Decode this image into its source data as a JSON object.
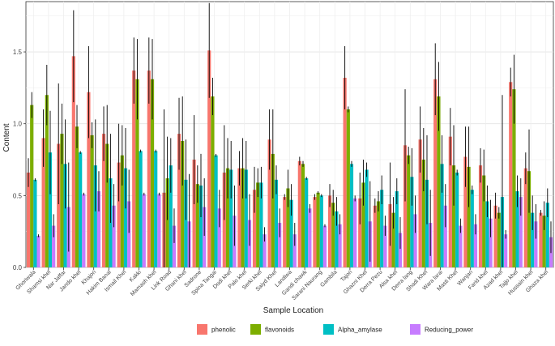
{
  "chart_data": {
    "type": "bar",
    "xlabel": "Sample Location",
    "ylabel": "Content",
    "ylim": [
      0,
      1.85
    ],
    "yticks": [
      "0.0",
      "0.5",
      "1.0",
      "1.5"
    ],
    "ytick_values": [
      0,
      0.5,
      1.0,
      1.5
    ],
    "grid": true,
    "legend_position": "bottom",
    "categories": [
      "Ghoriwala",
      "Shamsi khel",
      "Nar Jaffar",
      "Jando khel",
      "Khajori",
      "Hakim Banal",
      "Ismail Khel",
      "Kakki",
      "Mamash khel",
      "Link Road",
      "Ghani khel",
      "Sadrone",
      "Spina Tangai",
      "Dodi khel",
      "Palo khel",
      "Serki khel",
      "Saiyd Khel",
      "Landiwa",
      "Gandi chawk",
      "Sarani Naurang",
      "Gambila",
      "Tajori",
      "Ghazni Khel",
      "Derra Pezu",
      "Alsa khel",
      "Derra lang",
      "Shadi Khel",
      "Wara larai",
      "Masti Khel",
      "Wanjari",
      "Farid khel",
      "Azad khel",
      "Tajjo khel",
      "Hussain khel",
      "Ghaza khel"
    ],
    "series": [
      {
        "name": "phenolic",
        "color": "#F8766D",
        "values": [
          0.66,
          0.9,
          0.86,
          1.47,
          1.22,
          0.93,
          0.73,
          1.37,
          1.37,
          0.52,
          0.93,
          0.75,
          1.51,
          0.66,
          0.69,
          0.54,
          0.89,
          0.49,
          0.74,
          0.49,
          0.5,
          1.32,
          0.48,
          0.43,
          0.44,
          0.85,
          0.89,
          1.31,
          0.91,
          0.77,
          0.71,
          0.43,
          1.29,
          0.69,
          0.38
        ],
        "errors": [
          0.1,
          0.2,
          0.42,
          0.32,
          0.32,
          0.19,
          0.27,
          0.23,
          0.23,
          0.58,
          0.25,
          0.31,
          0.33,
          0.33,
          0.12,
          0.16,
          0.21,
          0.02,
          0.03,
          0.02,
          0.08,
          0.22,
          0.18,
          0.05,
          0.29,
          0.39,
          0.23,
          0.25,
          0.2,
          0.21,
          0.12,
          0.09,
          0.1,
          0.11,
          0.02
        ]
      },
      {
        "name": "flavonoids",
        "color": "#7CAE00",
        "values": [
          1.13,
          1.2,
          0.93,
          0.98,
          0.92,
          0.86,
          0.78,
          1.31,
          1.31,
          0.62,
          0.88,
          0.58,
          1.19,
          0.69,
          0.69,
          0.59,
          0.79,
          0.55,
          0.72,
          0.52,
          0.45,
          1.1,
          0.59,
          0.46,
          0.38,
          0.78,
          0.75,
          1.19,
          0.71,
          0.7,
          0.64,
          0.38,
          1.24,
          0.67,
          0.36
        ],
        "errors": [
          0.09,
          0.21,
          0.21,
          0.15,
          0.09,
          0.27,
          0.21,
          0.28,
          0.28,
          0.29,
          0.31,
          0.13,
          0.13,
          0.21,
          0.21,
          0.1,
          0.31,
          0.13,
          0.02,
          0.01,
          0.09,
          0.02,
          0.16,
          0.07,
          0.11,
          0.06,
          0.22,
          0.24,
          0.28,
          0.28,
          0.18,
          0.04,
          0.24,
          0.29,
          0.1
        ]
      },
      {
        "name": "Alpha_amylase",
        "color": "#00BFC4",
        "values": [
          0.61,
          0.8,
          0.72,
          0.8,
          0.71,
          0.62,
          0.69,
          0.81,
          0.81,
          0.71,
          0.61,
          0.57,
          0.78,
          0.68,
          0.68,
          0.59,
          0.61,
          0.47,
          0.62,
          0.5,
          0.39,
          0.72,
          0.68,
          0.54,
          0.53,
          0.63,
          0.61,
          0.72,
          0.66,
          0.54,
          0.46,
          0.49,
          0.53,
          0.38,
          0.45
        ],
        "errors": [
          0.01,
          0.29,
          0.31,
          0.01,
          0.32,
          0.31,
          0.28,
          0.01,
          0.01,
          0.19,
          0.28,
          0.22,
          0.01,
          0.2,
          0.2,
          0.11,
          0.1,
          0.11,
          0.01,
          0.01,
          0.1,
          0.02,
          0.05,
          0.1,
          0.09,
          0.2,
          0.31,
          0.2,
          0.02,
          0.03,
          0.11,
          0.71,
          0.11,
          0.12,
          0.1
        ]
      },
      {
        "name": "Reducing_power",
        "color": "#C77CFF",
        "values": [
          0.22,
          0.29,
          0.42,
          0.51,
          0.53,
          0.43,
          0.46,
          0.51,
          0.51,
          0.29,
          0.32,
          0.42,
          0.41,
          0.36,
          0.33,
          0.23,
          0.31,
          0.23,
          0.41,
          0.29,
          0.3,
          0.48,
          0.32,
          0.29,
          0.24,
          0.37,
          0.31,
          0.43,
          0.29,
          0.3,
          0.34,
          0.23,
          0.49,
          0.32,
          0.21
        ],
        "errors": [
          0.01,
          0.08,
          0.31,
          0.01,
          0.14,
          0.15,
          0.22,
          0.01,
          0.01,
          0.12,
          0.33,
          0.2,
          0.13,
          0.21,
          0.18,
          0.05,
          0.1,
          0.08,
          0.03,
          0.01,
          0.07,
          0.02,
          0.28,
          0.07,
          0.11,
          0.13,
          0.23,
          0.15,
          0.05,
          0.07,
          0.13,
          0.03,
          0.13,
          0.12,
          0.11
        ]
      }
    ]
  }
}
